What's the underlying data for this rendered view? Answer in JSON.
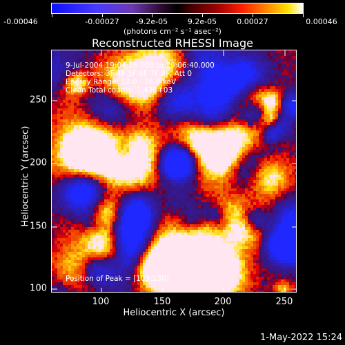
{
  "colorbar": {
    "tick_labels": [
      "-0.00046",
      "-0.00027",
      "-9.2e-05",
      "9.2e-05",
      "0.00027",
      "0.00046"
    ],
    "unit": "(photons cm⁻² s⁻¹ asec⁻²)"
  },
  "title": "Reconstructed RHESSI Image",
  "info": {
    "time_range": "9-Jul-2004 19:04:28.000 to 19:06:40.000",
    "detectors": "Detectors: 3F 4F 5F 6F 7F 8F, Att 0",
    "energy": "Energy Range: 12.0 - 25.0 keV",
    "clean": "Clean     Total counts: 1.43E+03",
    "peak": "Position of Peak = [109,130]"
  },
  "axes": {
    "xlabel": "Heliocentric X (arcsec)",
    "ylabel": "Heliocentric Y (arcsec)",
    "xticks": [
      "100",
      "150",
      "200",
      "250"
    ],
    "yticks": [
      "250",
      "200",
      "150",
      "100"
    ]
  },
  "timestamp": "1-May-2022 15:24",
  "colors": {
    "positive_high": "#ffffff",
    "positive_mid": "#ff2000",
    "negative": "#4a3aff"
  }
}
